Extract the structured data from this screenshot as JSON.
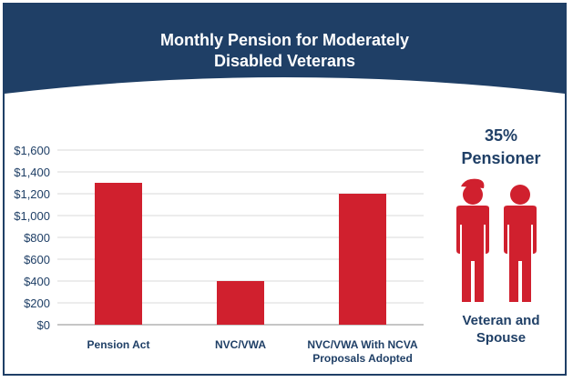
{
  "header": {
    "title_line1": "Monthly Pension for Moderately",
    "title_line2": "Disabled Veterans"
  },
  "side_panel": {
    "percent": "35%",
    "label": "Pensioner",
    "caption_line1": "Veteran and",
    "caption_line2": "Spouse",
    "icon": "veteran-and-spouse-icon"
  },
  "colors": {
    "navy": "#1f3f66",
    "bar": "#d0202e",
    "grid": "#d9d9d9"
  },
  "chart_data": {
    "type": "bar",
    "title": "Monthly Pension for Moderately Disabled Veterans",
    "categories": [
      [
        "Pension Act"
      ],
      [
        "NVC/VWA"
      ],
      [
        "NVC/VWA With NCVA",
        "Proposals Adopted"
      ]
    ],
    "values": [
      1300,
      400,
      1200
    ],
    "ylim": [
      0,
      1600
    ],
    "yticks": [
      0,
      200,
      400,
      600,
      800,
      1000,
      1200,
      1400,
      1600
    ],
    "ytick_labels": [
      "$0",
      "$200",
      "$400",
      "$600",
      "$800",
      "$1,000",
      "$1,200",
      "$1,400",
      "$1,600"
    ],
    "xlabel": "",
    "ylabel": "",
    "grid": true,
    "legend": "none"
  }
}
